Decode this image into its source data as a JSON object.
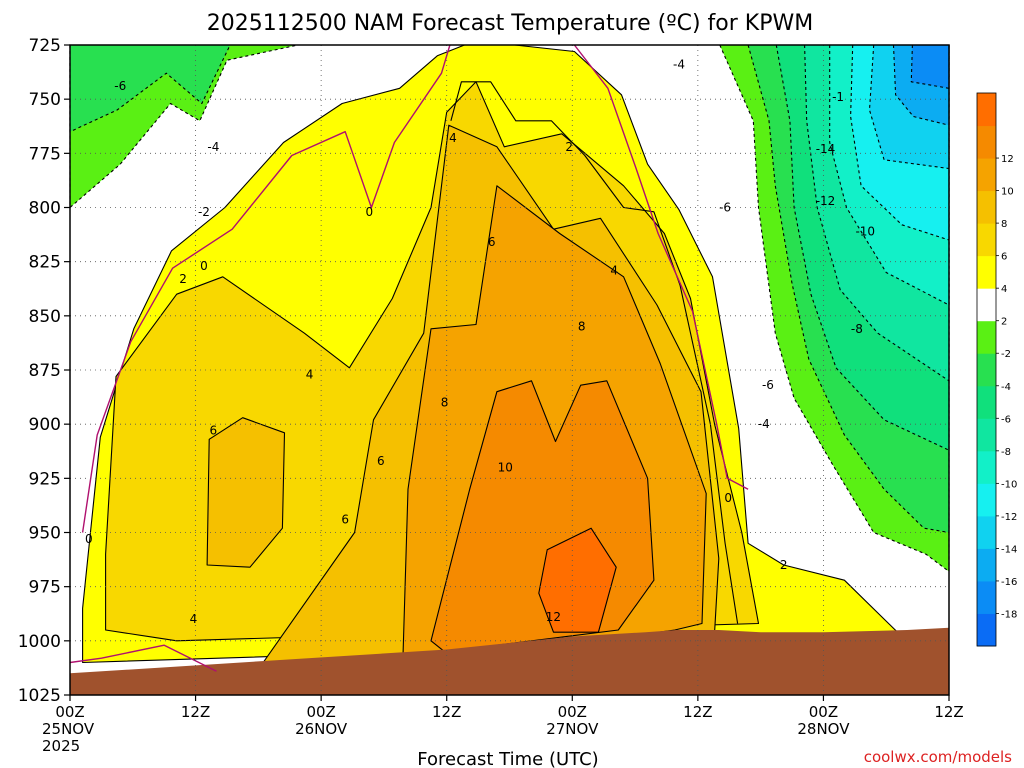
{
  "chart_data": {
    "type": "heatmap",
    "title": "2025112500 NAM Forecast Temperature (ºC) for KPWM",
    "xlabel": "Forecast Time (UTC)",
    "ylabel": "",
    "x_ticks": [
      {
        "hour": 0,
        "lines": [
          "00Z",
          "25NOV",
          "2025"
        ]
      },
      {
        "hour": 12,
        "lines": [
          "12Z"
        ]
      },
      {
        "hour": 24,
        "lines": [
          "00Z",
          "26NOV"
        ]
      },
      {
        "hour": 36,
        "lines": [
          "12Z"
        ]
      },
      {
        "hour": 48,
        "lines": [
          "00Z",
          "27NOV"
        ]
      },
      {
        "hour": 60,
        "lines": [
          "12Z"
        ]
      },
      {
        "hour": 72,
        "lines": [
          "00Z",
          "28NOV"
        ]
      },
      {
        "hour": 84,
        "lines": [
          "12Z"
        ]
      }
    ],
    "xlim": [
      0,
      84
    ],
    "y_ticks": [
      725,
      750,
      775,
      800,
      825,
      850,
      875,
      900,
      925,
      950,
      975,
      1000,
      1025
    ],
    "ylim": [
      1025,
      725
    ],
    "grid": true,
    "colorbar": {
      "position": "right",
      "levels": [
        -20,
        -18,
        -16,
        -14,
        -12,
        -10,
        -8,
        -6,
        -4,
        -2,
        2,
        4,
        6,
        8,
        10,
        12,
        14
      ],
      "tick_labels": [
        "-18",
        "-16",
        "-14",
        "-12",
        "-10",
        "-8",
        "-6",
        "-4",
        "-2",
        "2",
        "4",
        "6",
        "8",
        "10",
        "12"
      ],
      "colors": [
        "#0a6cf5",
        "#0b8cf5",
        "#0cacf2",
        "#10d2f0",
        "#16f0f0",
        "#12f0c8",
        "#10e6a0",
        "#10e07c",
        "#28e050",
        "#5af014",
        "#ffffff",
        "#ffff00",
        "#f8d800",
        "#f5c000",
        "#f5a300",
        "#f58a00",
        "#ff6e00"
      ]
    },
    "series": [
      {
        "region": "ge12",
        "points": [
          [
            45.6,
            958
          ],
          [
            49.8,
            948
          ],
          [
            52.2,
            966
          ],
          [
            50.5,
            996
          ],
          [
            46.2,
            996
          ],
          [
            44.8,
            978
          ]
        ]
      },
      {
        "region": "ge10",
        "points": [
          [
            34.5,
            1000
          ],
          [
            38.2,
            930
          ],
          [
            40.8,
            885
          ],
          [
            44.1,
            880
          ],
          [
            46.4,
            908
          ],
          [
            48.8,
            882
          ],
          [
            51.3,
            880
          ],
          [
            55.2,
            925
          ],
          [
            55.8,
            972
          ],
          [
            52.4,
            995
          ],
          [
            35.8,
            1005
          ]
        ]
      },
      {
        "region": "ge8",
        "points": [
          [
            31.8,
            1010
          ],
          [
            32.3,
            930
          ],
          [
            34.5,
            856
          ],
          [
            38.8,
            854
          ],
          [
            40.8,
            790
          ],
          [
            46.8,
            812
          ],
          [
            52.9,
            832
          ],
          [
            56.4,
            872
          ],
          [
            60.8,
            932
          ],
          [
            60.4,
            992
          ],
          [
            57.8,
            995
          ],
          [
            31.8,
            1012
          ]
        ]
      },
      {
        "region": "ge6_left",
        "points": [
          [
            13.1,
            965
          ],
          [
            13.3,
            907
          ],
          [
            16.5,
            897
          ],
          [
            20.5,
            904
          ],
          [
            20.3,
            948
          ],
          [
            17.2,
            966
          ]
        ]
      },
      {
        "region": "ge6_main",
        "points": [
          [
            17.0,
            1020
          ],
          [
            27.2,
            950
          ],
          [
            29.0,
            898
          ],
          [
            33.8,
            858
          ],
          [
            36.2,
            762
          ],
          [
            40.8,
            772
          ],
          [
            46.2,
            810
          ],
          [
            50.7,
            805
          ],
          [
            56.1,
            845
          ],
          [
            60.3,
            885
          ],
          [
            62.0,
            962
          ],
          [
            61.6,
            996
          ],
          [
            19.0,
            1022
          ]
        ]
      },
      {
        "region": "ge4_left",
        "points": [
          [
            3.4,
            960
          ],
          [
            4.4,
            878
          ],
          [
            10.2,
            840
          ],
          [
            14.6,
            832
          ],
          [
            22.4,
            858
          ],
          [
            26.7,
            874
          ],
          [
            30.8,
            842
          ],
          [
            34.5,
            800
          ],
          [
            36.0,
            756
          ],
          [
            38.8,
            742
          ],
          [
            41.5,
            772
          ],
          [
            47.0,
            766
          ],
          [
            52.9,
            790
          ],
          [
            56.8,
            812
          ],
          [
            59.3,
            842
          ],
          [
            61.6,
            900
          ],
          [
            64.2,
            950
          ],
          [
            65.8,
            992
          ],
          [
            10.2,
            1000
          ],
          [
            3.4,
            995
          ]
        ]
      },
      {
        "region": "ge4_top",
        "points": [
          [
            36.4,
            760
          ],
          [
            37.4,
            742
          ],
          [
            40.2,
            742
          ],
          [
            42.6,
            760
          ],
          [
            46.0,
            760
          ],
          [
            49.2,
            776
          ],
          [
            52.9,
            800
          ],
          [
            55.8,
            802
          ],
          [
            58.3,
            836
          ],
          [
            61.2,
            900
          ],
          [
            62.6,
            955
          ],
          [
            63.8,
            992
          ]
        ]
      },
      {
        "region": "ge2",
        "points": [
          [
            1.2,
            985
          ],
          [
            2.9,
            906
          ],
          [
            6.1,
            856
          ],
          [
            9.7,
            820
          ],
          [
            14.8,
            800
          ],
          [
            20.4,
            770
          ],
          [
            26.0,
            752
          ],
          [
            31.5,
            745
          ],
          [
            35.1,
            730
          ],
          [
            37.7,
            725
          ],
          [
            42.5,
            725
          ],
          [
            48.2,
            728
          ],
          [
            52.7,
            748
          ],
          [
            55.2,
            780
          ],
          [
            58.2,
            801
          ],
          [
            61.4,
            832
          ],
          [
            63.9,
            902
          ],
          [
            64.8,
            955
          ],
          [
            68.2,
            965
          ],
          [
            74.0,
            972
          ],
          [
            79.5,
            998
          ],
          [
            1.2,
            1010
          ]
        ]
      },
      {
        "region": "lem2_top",
        "points": [
          [
            0,
            742
          ],
          [
            0,
            800
          ],
          [
            4.8,
            780
          ],
          [
            9.6,
            752
          ],
          [
            12.4,
            760
          ],
          [
            15.0,
            732
          ],
          [
            21.8,
            725
          ],
          [
            0,
            725
          ]
        ]
      },
      {
        "region": "lem2_right",
        "points": [
          [
            62.1,
            725
          ],
          [
            65.3,
            760
          ],
          [
            65.8,
            800
          ],
          [
            67.4,
            858
          ],
          [
            69.2,
            888
          ],
          [
            72.8,
            918
          ],
          [
            76.8,
            950
          ],
          [
            81.8,
            960
          ],
          [
            84,
            968
          ],
          [
            84,
            725
          ]
        ]
      },
      {
        "region": "lem4_top",
        "points": [
          [
            0,
            725
          ],
          [
            0,
            765
          ],
          [
            4.5,
            755
          ],
          [
            9.2,
            738
          ],
          [
            12.6,
            752
          ],
          [
            15.3,
            725
          ]
        ]
      },
      {
        "region": "lem4_right",
        "points": [
          [
            64.8,
            725
          ],
          [
            66.8,
            760
          ],
          [
            67.4,
            790
          ],
          [
            69.0,
            835
          ],
          [
            70.6,
            870
          ],
          [
            74.0,
            905
          ],
          [
            77.8,
            930
          ],
          [
            81.6,
            948
          ],
          [
            84,
            950
          ],
          [
            84,
            725
          ]
        ]
      },
      {
        "region": "lem6_right",
        "points": [
          [
            67.5,
            725
          ],
          [
            68.8,
            760
          ],
          [
            69.2,
            800
          ],
          [
            70.8,
            840
          ],
          [
            73.2,
            874
          ],
          [
            77.8,
            898
          ],
          [
            84,
            912
          ],
          [
            84,
            725
          ]
        ]
      },
      {
        "region": "lem8_right",
        "points": [
          [
            70.2,
            725
          ],
          [
            70.4,
            760
          ],
          [
            71.4,
            800
          ],
          [
            73.6,
            838
          ],
          [
            77.2,
            858
          ],
          [
            84,
            880
          ],
          [
            84,
            725
          ]
        ]
      },
      {
        "region": "lem10_right",
        "points": [
          [
            72.6,
            725
          ],
          [
            72.6,
            770
          ],
          [
            74.2,
            800
          ],
          [
            78.0,
            830
          ],
          [
            84,
            845
          ],
          [
            84,
            725
          ]
        ]
      },
      {
        "region": "lem12_right",
        "points": [
          [
            74.8,
            725
          ],
          [
            74.6,
            758
          ],
          [
            75.6,
            790
          ],
          [
            79.5,
            808
          ],
          [
            84,
            815
          ],
          [
            84,
            725
          ]
        ]
      },
      {
        "region": "lem14_right",
        "points": [
          [
            76.8,
            725
          ],
          [
            76.4,
            755
          ],
          [
            77.8,
            778
          ],
          [
            84,
            782
          ],
          [
            84,
            725
          ]
        ]
      },
      {
        "region": "lem16_right",
        "points": [
          [
            78.7,
            725
          ],
          [
            78.9,
            748
          ],
          [
            80.6,
            758
          ],
          [
            84,
            762
          ],
          [
            84,
            725
          ]
        ]
      },
      {
        "region": "lem18_right",
        "points": [
          [
            80.5,
            725
          ],
          [
            80.4,
            742
          ],
          [
            84,
            745
          ],
          [
            84,
            725
          ]
        ]
      },
      {
        "region": "terrain",
        "points": [
          [
            0,
            1015
          ],
          [
            36,
            1004
          ],
          [
            48,
            998
          ],
          [
            55,
            996
          ],
          [
            58,
            995
          ],
          [
            62,
            995
          ],
          [
            66,
            996
          ],
          [
            72,
            996
          ],
          [
            80,
            995
          ],
          [
            84,
            994
          ],
          [
            84,
            1025
          ],
          [
            0,
            1025
          ]
        ]
      }
    ],
    "contour_labels": [
      {
        "x": 4.8,
        "y": 744,
        "text": "-6"
      },
      {
        "x": 13.7,
        "y": 772,
        "text": "-4"
      },
      {
        "x": 12.8,
        "y": 802,
        "text": "-2"
      },
      {
        "x": 12.8,
        "y": 827,
        "text": "0"
      },
      {
        "x": 10.8,
        "y": 833,
        "text": "2"
      },
      {
        "x": 28.6,
        "y": 802,
        "text": "0"
      },
      {
        "x": 22.9,
        "y": 877,
        "text": "4"
      },
      {
        "x": 13.7,
        "y": 903,
        "text": "6"
      },
      {
        "x": 1.8,
        "y": 953,
        "text": "0"
      },
      {
        "x": 11.8,
        "y": 990,
        "text": "4"
      },
      {
        "x": 26.3,
        "y": 944,
        "text": "6"
      },
      {
        "x": 29.7,
        "y": 917,
        "text": "6"
      },
      {
        "x": 36.6,
        "y": 768,
        "text": "4"
      },
      {
        "x": 47.7,
        "y": 772,
        "text": "2"
      },
      {
        "x": 40.3,
        "y": 816,
        "text": "6"
      },
      {
        "x": 52.0,
        "y": 829,
        "text": "4"
      },
      {
        "x": 48.9,
        "y": 855,
        "text": "8"
      },
      {
        "x": 35.8,
        "y": 890,
        "text": "8"
      },
      {
        "x": 41.6,
        "y": 920,
        "text": "10"
      },
      {
        "x": 46.2,
        "y": 989,
        "text": "12"
      },
      {
        "x": 62.9,
        "y": 934,
        "text": "0"
      },
      {
        "x": 68.2,
        "y": 965,
        "text": "2"
      },
      {
        "x": 58.2,
        "y": 734,
        "text": "-4"
      },
      {
        "x": 62.6,
        "y": 800,
        "text": "-6"
      },
      {
        "x": 73.4,
        "y": 749,
        "text": "-1"
      },
      {
        "x": 72.2,
        "y": 773,
        "text": "-14"
      },
      {
        "x": 72.2,
        "y": 797,
        "text": "-12"
      },
      {
        "x": 76.0,
        "y": 811,
        "text": "-10"
      },
      {
        "x": 75.2,
        "y": 856,
        "text": "-8"
      },
      {
        "x": 66.7,
        "y": 882,
        "text": "-6"
      },
      {
        "x": 66.3,
        "y": 900,
        "text": "-4"
      }
    ],
    "credit": "coolwx.com/models"
  }
}
